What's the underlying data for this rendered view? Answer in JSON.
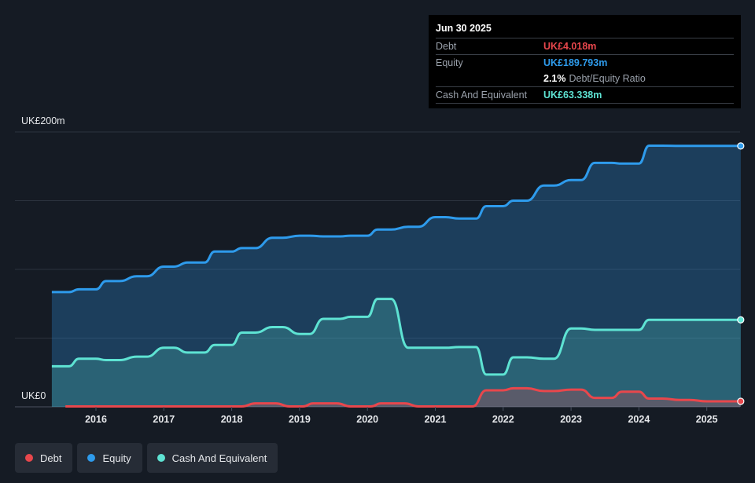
{
  "tooltip": {
    "date": "Jun 30 2025",
    "debt_label": "Debt",
    "debt_value": "UK£4.018m",
    "equity_label": "Equity",
    "equity_value": "UK£189.793m",
    "ratio_value": "2.1%",
    "ratio_label": "Debt/Equity Ratio",
    "cash_label": "Cash And Equivalent",
    "cash_value": "UK£63.338m"
  },
  "legend": {
    "debt": "Debt",
    "equity": "Equity",
    "cash": "Cash And Equivalent"
  },
  "colors": {
    "debt": "#e8474c",
    "equity": "#2e9bec",
    "cash": "#5ee3d3",
    "background": "#151b24"
  },
  "chart_data": {
    "type": "area",
    "ylim": [
      0,
      200
    ],
    "y_tick_labels": [
      "UK£200m",
      "UK£0"
    ],
    "x_tick_labels": [
      "2016",
      "2017",
      "2018",
      "2019",
      "2020",
      "2021",
      "2022",
      "2023",
      "2024",
      "2025"
    ],
    "x_tick_values": [
      2016,
      2017,
      2018,
      2019,
      2020,
      2021,
      2022,
      2023,
      2024,
      2025
    ],
    "grid": true,
    "legend_position": "bottom-left",
    "series": [
      {
        "name": "Equity",
        "x": [
          2015.35,
          2015.6,
          2015.75,
          2016.0,
          2016.15,
          2016.35,
          2016.6,
          2016.75,
          2017.0,
          2017.15,
          2017.35,
          2017.6,
          2017.75,
          2018.0,
          2018.15,
          2018.35,
          2018.6,
          2018.75,
          2019.0,
          2019.15,
          2019.35,
          2019.6,
          2019.75,
          2020.0,
          2020.15,
          2020.35,
          2020.6,
          2020.75,
          2021.0,
          2021.15,
          2021.35,
          2021.6,
          2021.75,
          2022.0,
          2022.15,
          2022.35,
          2022.6,
          2022.75,
          2023.0,
          2023.15,
          2023.35,
          2023.6,
          2023.75,
          2024.0,
          2024.15,
          2024.35,
          2024.6,
          2024.75,
          2025.0,
          2025.15,
          2025.35,
          2025.5
        ],
        "values": [
          83.5,
          83.5,
          85.5,
          85.5,
          91.5,
          91.5,
          95.0,
          95.0,
          102.0,
          102.0,
          105.0,
          105.0,
          113.0,
          113.0,
          115.5,
          115.5,
          123.0,
          123.0,
          124.5,
          124.5,
          124.0,
          124.0,
          124.5,
          124.5,
          129.0,
          129.0,
          131.0,
          131.0,
          138.0,
          138.0,
          137.0,
          137.0,
          146.0,
          146.0,
          150.0,
          150.0,
          161.0,
          161.0,
          165.0,
          165.0,
          177.5,
          177.5,
          177.0,
          177.0,
          190.0,
          190.0,
          189.8,
          189.8,
          189.8,
          189.8,
          189.8,
          189.8
        ]
      },
      {
        "name": "Cash And Equivalent",
        "x": [
          2015.35,
          2015.6,
          2015.75,
          2016.0,
          2016.15,
          2016.35,
          2016.6,
          2016.75,
          2017.0,
          2017.15,
          2017.35,
          2017.6,
          2017.75,
          2018.0,
          2018.15,
          2018.35,
          2018.6,
          2018.75,
          2019.0,
          2019.15,
          2019.35,
          2019.6,
          2019.75,
          2020.0,
          2020.15,
          2020.35,
          2020.6,
          2020.75,
          2021.0,
          2021.15,
          2021.35,
          2021.6,
          2021.75,
          2022.0,
          2022.15,
          2022.35,
          2022.6,
          2022.75,
          2023.0,
          2023.15,
          2023.35,
          2023.6,
          2023.75,
          2024.0,
          2024.15,
          2024.35,
          2024.6,
          2024.75,
          2025.0,
          2025.15,
          2025.35,
          2025.5
        ],
        "values": [
          29.5,
          29.5,
          35.0,
          35.0,
          34.0,
          34.0,
          36.5,
          36.5,
          43.0,
          43.0,
          39.5,
          39.5,
          45.0,
          45.0,
          54.0,
          54.0,
          58.0,
          58.0,
          53.0,
          53.0,
          64.0,
          64.0,
          65.5,
          65.5,
          78.5,
          78.5,
          43.0,
          43.0,
          43.0,
          43.0,
          43.5,
          43.5,
          23.5,
          23.5,
          36.0,
          36.0,
          35.0,
          35.0,
          57.0,
          57.0,
          56.0,
          56.0,
          56.0,
          56.0,
          63.3,
          63.3,
          63.3,
          63.3,
          63.3,
          63.3,
          63.3,
          63.3
        ]
      },
      {
        "name": "Debt",
        "x": [
          2015.55,
          2018.15,
          2018.35,
          2018.65,
          2018.85,
          2019.05,
          2019.2,
          2019.55,
          2019.75,
          2020.05,
          2020.2,
          2020.55,
          2020.75,
          2021.0,
          2021.15,
          2021.55,
          2021.75,
          2022.0,
          2022.15,
          2022.35,
          2022.6,
          2022.75,
          2023.0,
          2023.15,
          2023.35,
          2023.6,
          2023.75,
          2024.0,
          2024.15,
          2024.35,
          2024.6,
          2024.75,
          2025.0,
          2025.15,
          2025.35,
          2025.5
        ],
        "values": [
          0.3,
          0.3,
          2.5,
          2.5,
          0.3,
          0.3,
          2.5,
          2.5,
          0.3,
          0.3,
          2.5,
          2.5,
          0.3,
          0.3,
          0.3,
          0.3,
          12.0,
          12.0,
          13.5,
          13.5,
          11.5,
          11.5,
          12.5,
          12.5,
          6.5,
          6.5,
          11.0,
          11.0,
          6.0,
          6.0,
          5.0,
          5.0,
          4.0,
          4.0,
          4.0,
          4.0
        ]
      }
    ]
  }
}
